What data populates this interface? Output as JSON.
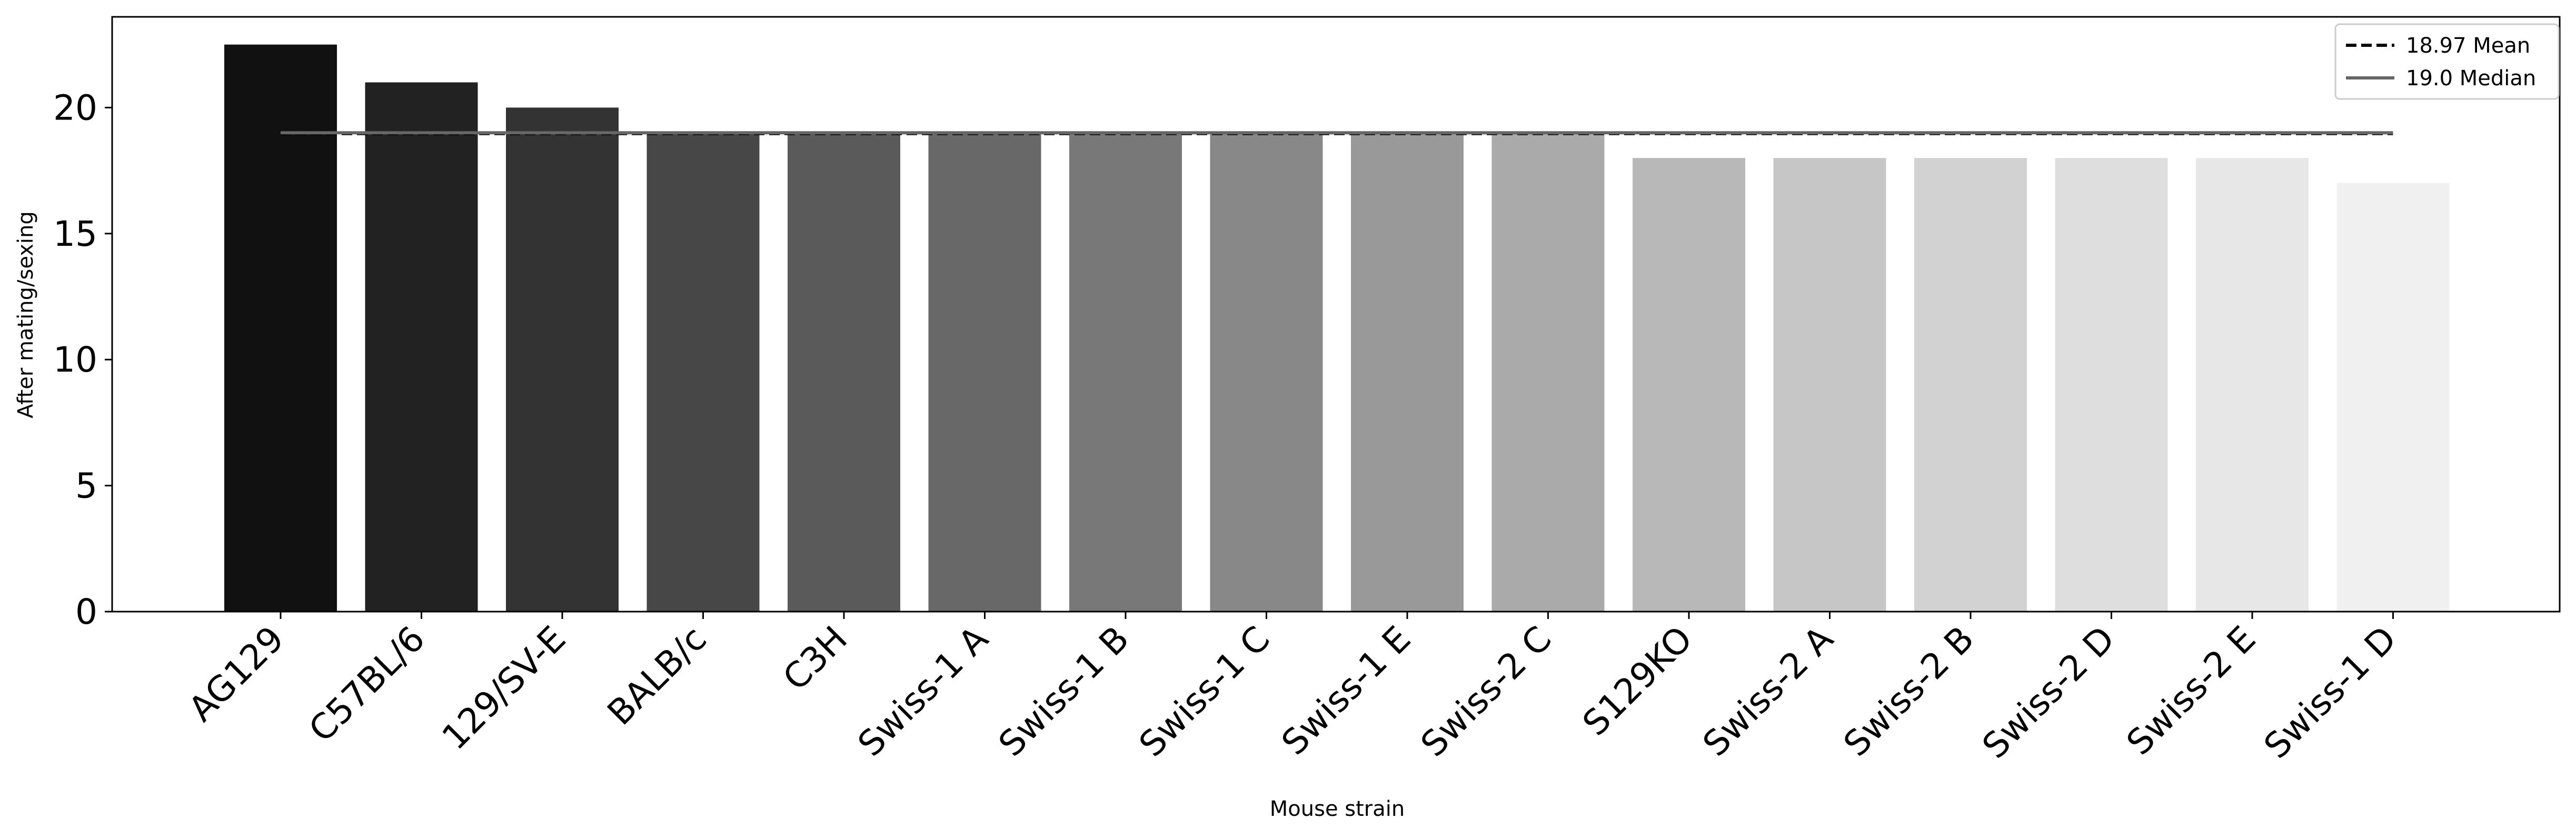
{
  "chart_data": {
    "type": "bar",
    "categories": [
      "AG129",
      "C57BL/6",
      "129/SV-E",
      "BALB/c",
      "C3H",
      "Swiss-1 A",
      "Swiss-1 B",
      "Swiss-1 C",
      "Swiss-1 E",
      "Swiss-2 C",
      "S129KO",
      "Swiss-2 A",
      "Swiss-2 B",
      "Swiss-2 D",
      "Swiss-2 E",
      "Swiss-1 D"
    ],
    "values": [
      22.5,
      21,
      20,
      19,
      19,
      19,
      19,
      19,
      19,
      19,
      18,
      18,
      18,
      18,
      18,
      17
    ],
    "bar_colors": [
      "#111111",
      "#222222",
      "#333333",
      "#474747",
      "#5a5a5a",
      "#686868",
      "#787878",
      "#888888",
      "#999999",
      "#aaaaaa",
      "#b8b8b8",
      "#c6c6c6",
      "#d2d2d2",
      "#dedede",
      "#e7e7e7",
      "#f0f0f0"
    ],
    "title": "",
    "xlabel": "Mouse strain",
    "ylabel": "After mating/sexing",
    "ylim": [
      0,
      23.6
    ],
    "yticks": [
      0,
      5,
      10,
      15,
      20
    ],
    "grid": false,
    "reference_lines": [
      {
        "label": "18.97 Mean",
        "value": 18.97,
        "style": "dashed",
        "color": "#000000"
      },
      {
        "label": "19.0 Median",
        "value": 19.0,
        "style": "solid",
        "color": "#666666"
      }
    ],
    "legend": {
      "placement": "top-right",
      "entries": [
        "18.97 Mean",
        "19.0 Median"
      ]
    }
  }
}
